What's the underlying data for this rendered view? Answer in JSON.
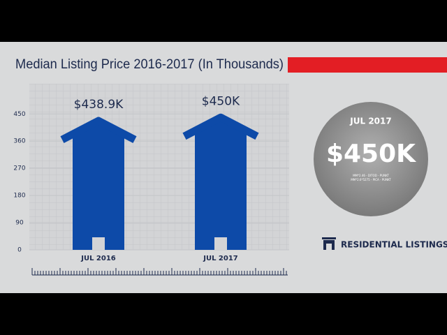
{
  "chart_data": {
    "type": "bar",
    "title": "Median Listing Price 2016-2017 (In Thousands)",
    "categories": [
      "JUL 2016",
      "JUL 2017"
    ],
    "values": [
      438.9,
      450
    ],
    "value_labels": [
      "$438.9K",
      "$450K"
    ],
    "color": "#0d4aa8",
    "ylim": [
      0,
      550
    ],
    "yticks": [
      0,
      90,
      180,
      270,
      360,
      450
    ],
    "grid": true,
    "legend": "RESIDENTIAL LISTINGS"
  },
  "callout": {
    "label": "JUL 2017",
    "value": "$450K",
    "notes": [
      "MM*2.46 - DITOD - PUNKT",
      "MM*2.6*5275 - PICA - PUNKT"
    ]
  }
}
